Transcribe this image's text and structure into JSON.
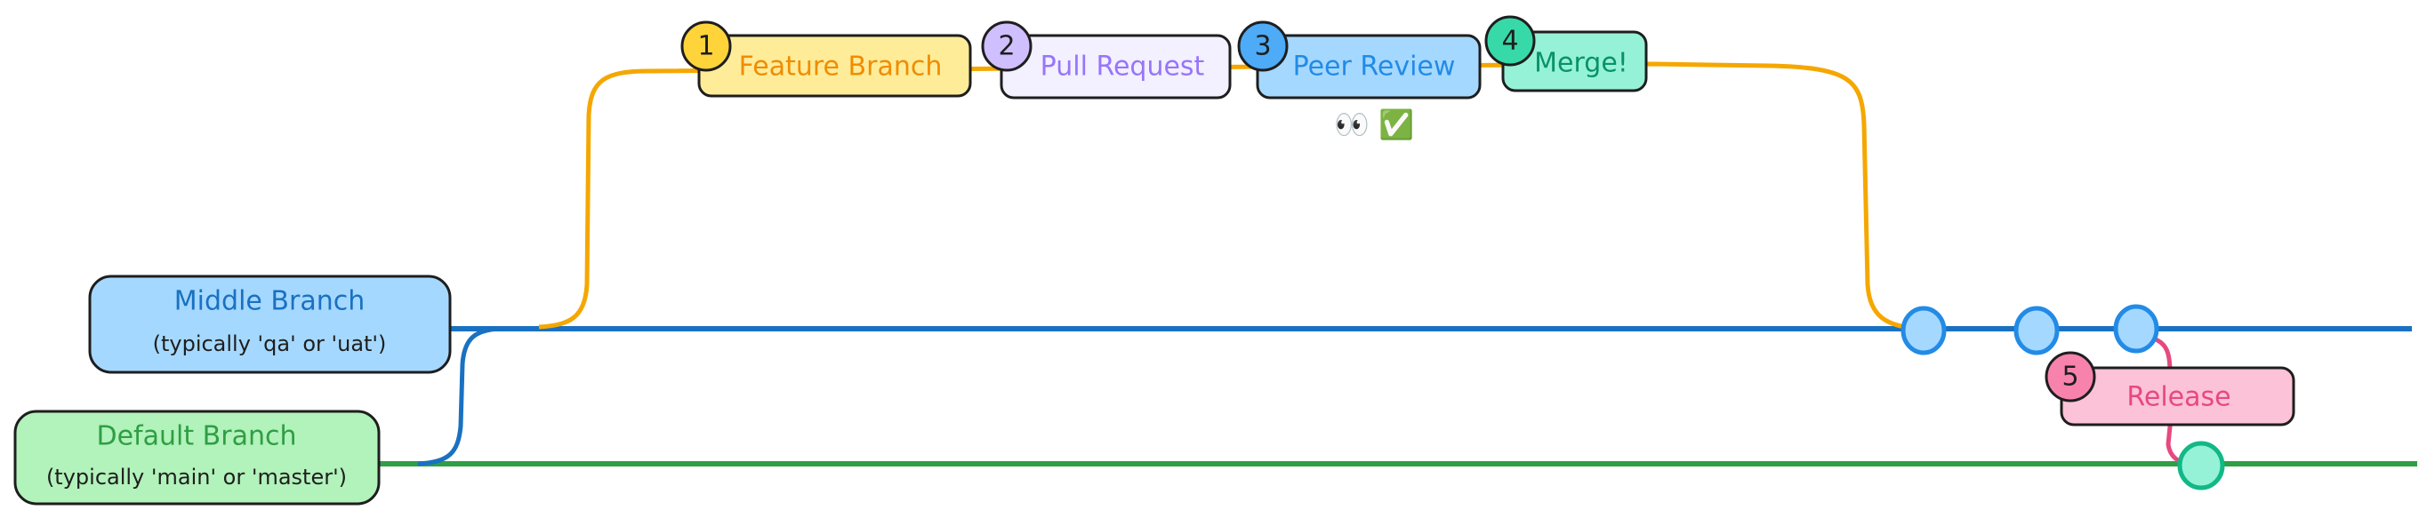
{
  "branches": {
    "middle": {
      "title": "Middle Branch",
      "subtitle": "(typically 'qa' or 'uat')",
      "fill": "#a5d8ff",
      "text_color": "#1971c2",
      "line_color": "#1971c2"
    },
    "default": {
      "title": "Default Branch",
      "subtitle": "(typically 'main' or 'master')",
      "fill": "#b2f2bb",
      "text_color": "#2f9e44",
      "line_color": "#2f9e44"
    }
  },
  "steps": [
    {
      "number": "1",
      "label": "Feature Branch",
      "fill": "#ffec99",
      "text_color": "#f08c00",
      "badge": "#ffd43b"
    },
    {
      "number": "2",
      "label": "Pull Request",
      "fill": "#f3f0ff",
      "text_color": "#9775fa",
      "badge": "#d0bfff"
    },
    {
      "number": "3",
      "label": "Peer Review",
      "fill": "#a5d8ff",
      "text_color": "#228be6",
      "badge": "#4dabf7"
    },
    {
      "number": "4",
      "label": "Merge!",
      "fill": "#96f2d7",
      "text_color": "#099268",
      "badge": "#38d9a9"
    },
    {
      "number": "5",
      "label": "Release",
      "fill": "#fcc2d7",
      "text_color": "#e64980",
      "badge": "#f783ac"
    }
  ],
  "review_emojis": "👀 ✅",
  "colors": {
    "feature_line": "#f5a700",
    "release_line": "#e64980",
    "middle_commit_fill": "#a5d8ff",
    "middle_commit_stroke": "#228be6",
    "default_commit_fill": "#96f2d7",
    "default_commit_stroke": "#12b886"
  }
}
